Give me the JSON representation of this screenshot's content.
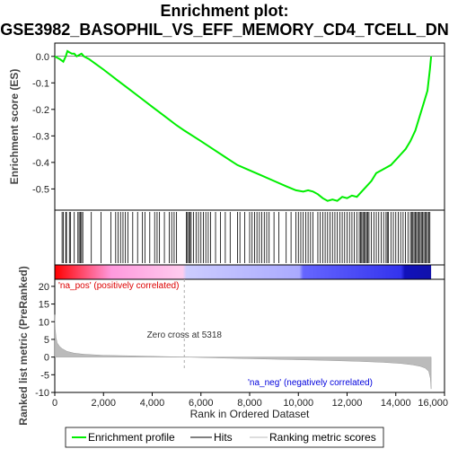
{
  "chart_data": {
    "type": "line",
    "title_line1": "Enrichment plot:",
    "title_line2": "GSE3982_BASOPHIL_VS_EFF_MEMORY_CD4_TCELL_DN",
    "top_panel": {
      "ylabel": "Enrichment score (ES)",
      "ylim": [
        -0.58,
        0.05
      ],
      "yticks": [
        0.0,
        -0.1,
        -0.2,
        -0.3,
        -0.4,
        -0.5
      ],
      "ytick_labels": [
        "0.0",
        "-0.1",
        "-0.2",
        "-0.3",
        "-0.4",
        "-0.5"
      ],
      "series": [
        {
          "name": "Enrichment profile",
          "color": "#00ee00",
          "x": [
            0,
            200,
            350,
            450,
            520,
            600,
            700,
            800,
            900,
            1000,
            1100,
            1200,
            1400,
            1700,
            2000,
            2500,
            3000,
            3500,
            4000,
            4500,
            5000,
            5318,
            6000,
            6500,
            7000,
            7500,
            8000,
            8500,
            9000,
            9500,
            9900,
            10200,
            10400,
            10600,
            10800,
            11000,
            11200,
            11400,
            11600,
            11800,
            12000,
            12200,
            12400,
            12600,
            12800,
            13000,
            13200,
            13400,
            13600,
            13800,
            14000,
            14200,
            14400,
            14600,
            14800,
            15000,
            15100,
            15200,
            15300,
            15400,
            15450
          ],
          "y": [
            0.0,
            -0.01,
            -0.02,
            0.0,
            0.02,
            0.015,
            0.01,
            0.01,
            0.0,
            0.005,
            0.01,
            0.0,
            -0.01,
            -0.03,
            -0.05,
            -0.085,
            -0.12,
            -0.155,
            -0.19,
            -0.225,
            -0.26,
            -0.28,
            -0.32,
            -0.35,
            -0.38,
            -0.41,
            -0.43,
            -0.45,
            -0.47,
            -0.49,
            -0.505,
            -0.51,
            -0.505,
            -0.51,
            -0.52,
            -0.535,
            -0.545,
            -0.54,
            -0.545,
            -0.53,
            -0.535,
            -0.525,
            -0.53,
            -0.51,
            -0.49,
            -0.47,
            -0.44,
            -0.43,
            -0.42,
            -0.41,
            -0.39,
            -0.37,
            -0.35,
            -0.32,
            -0.28,
            -0.22,
            -0.19,
            -0.16,
            -0.13,
            -0.05,
            0.0
          ]
        }
      ]
    },
    "hits": {
      "name": "Hits",
      "color": "#000000",
      "positions": [
        300,
        350,
        450,
        480,
        600,
        650,
        800,
        950,
        1000,
        1050,
        1100,
        1150,
        1500,
        1900,
        2300,
        2500,
        2600,
        2700,
        2800,
        2900,
        3000,
        3200,
        3400,
        3600,
        3700,
        3900,
        4100,
        4200,
        4300,
        4500,
        4700,
        4800,
        4900,
        5000,
        5400,
        5450,
        5500,
        5550,
        5600,
        5700,
        5800,
        5900,
        6000,
        6100,
        6200,
        6300,
        6400,
        6600,
        6800,
        7000,
        7200,
        7500,
        7600,
        7800,
        8000,
        8100,
        8200,
        8300,
        8400,
        8500,
        8600,
        8700,
        8800,
        9000,
        9200,
        9500,
        9700,
        9900,
        10000,
        10100,
        10200,
        10300,
        10400,
        10500,
        10600,
        10800,
        10900,
        11000,
        11100,
        11200,
        11300,
        11400,
        11500,
        11600,
        11700,
        11800,
        11900,
        12000,
        12100,
        12200,
        12300,
        12400,
        12500,
        12550,
        12600,
        12650,
        12700,
        12750,
        12800,
        12850,
        12900,
        13000,
        13100,
        13200,
        13300,
        13400,
        13500,
        13600,
        13650,
        13700,
        13800,
        13900,
        14000,
        14100,
        14200,
        14300,
        14400,
        14500,
        14600,
        14650,
        14700,
        14750,
        14800,
        14850,
        14900,
        14950,
        15000,
        15050,
        15100,
        15150,
        15200,
        15250,
        15300,
        15350,
        15400
      ]
    },
    "ranked_metric": {
      "name": "Ranking metric scores",
      "color": "#aaaaaa",
      "ylabel": "Ranked list metric (PreRanked)",
      "ylim": [
        -10,
        22
      ],
      "yticks": [
        20,
        15,
        10,
        5,
        0,
        -5,
        -10
      ],
      "ytick_labels": [
        "20",
        "15",
        "10",
        "5",
        "0",
        "-5",
        "-10"
      ],
      "x": [
        0,
        20,
        50,
        100,
        200,
        300,
        500,
        800,
        1200,
        2000,
        3000,
        4000,
        5318,
        7000,
        9000,
        11000,
        12500,
        13500,
        14200,
        14700,
        15000,
        15200,
        15350,
        15420,
        15450
      ],
      "y": [
        12,
        8,
        5.5,
        4,
        3,
        2.4,
        1.6,
        1.1,
        0.8,
        0.5,
        0.35,
        0.2,
        0,
        -0.3,
        -0.6,
        -0.9,
        -1.2,
        -1.5,
        -1.8,
        -2.2,
        -2.6,
        -3.1,
        -4,
        -6,
        -9
      ]
    },
    "x_axis": {
      "xlabel": "Rank in Ordered Dataset",
      "xlim": [
        0,
        16000
      ],
      "xticks": [
        0,
        2000,
        4000,
        6000,
        8000,
        10000,
        12000,
        14000,
        16000
      ],
      "xtick_labels": [
        "0",
        "2,000",
        "4,000",
        "6,000",
        "8,000",
        "10,000",
        "12,000",
        "14,000",
        "16,000"
      ],
      "total": 15450
    },
    "zero_cross": {
      "label": "Zero cross at 5318",
      "value": 5318
    },
    "annotations": {
      "pos_label": "'na_pos' (positively correlated)",
      "neg_label": "'na_neg' (negatively correlated)",
      "pos_color": "#dd0000",
      "neg_color": "#0000dd"
    },
    "legend": {
      "placement": "bottom",
      "items": [
        {
          "label": "Enrichment profile",
          "color": "#00ee00"
        },
        {
          "label": "Hits",
          "color": "#000000"
        },
        {
          "label": "Ranking metric scores",
          "color": "#bbbbbb"
        }
      ]
    }
  }
}
